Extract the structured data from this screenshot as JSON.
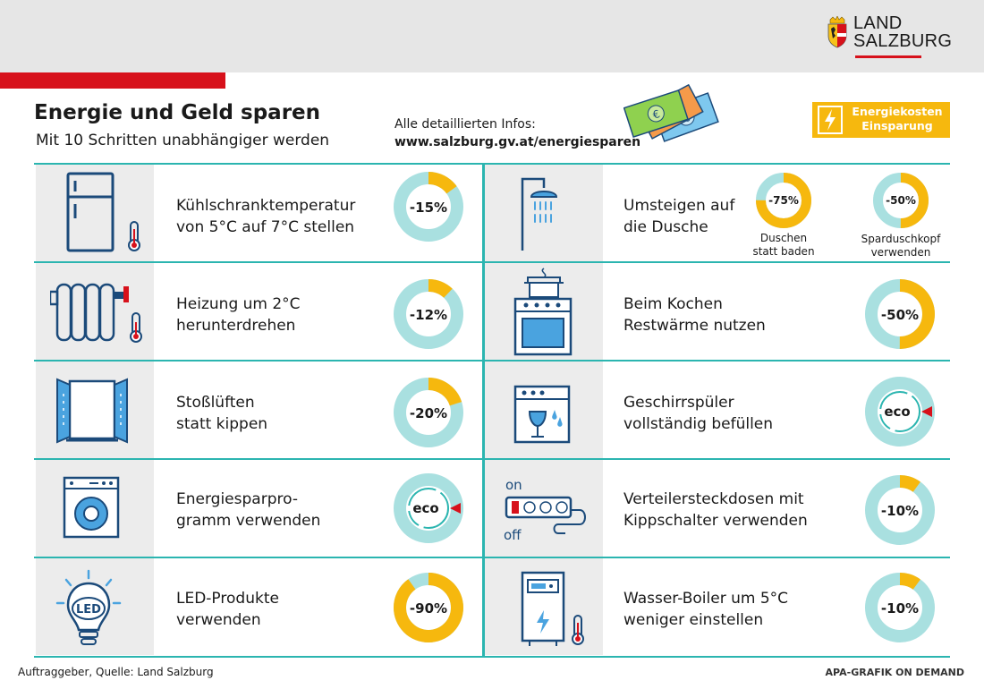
{
  "header": {
    "logo_line1": "LAND",
    "logo_line2": "SALZBURG",
    "title": "Energie und Geld sparen",
    "subtitle": "Mit 10 Schritten unabhängiger werden",
    "info_label": "Alle detaillierten Infos:",
    "info_url": "www.salzburg.gv.at/energiesparen",
    "legend_line1": "Energiekosten",
    "legend_line2": "Einsparung"
  },
  "colors": {
    "accent": "#f6b80e",
    "ring_bg": "#a9e0e0",
    "teal": "#2bb5b0",
    "icon": "#1b4a7a",
    "red": "#d7111b"
  },
  "tips": [
    {
      "icon": "fridge-thermometer-icon",
      "line1": "Kühlschranktemperatur",
      "line2": "von 5°C auf 7°C stellen",
      "saving": "-15%",
      "fraction": 0.15
    },
    {
      "icon": "radiator-thermometer-icon",
      "line1": "Heizung um 2°C",
      "line2": "herunterdrehen",
      "saving": "-12%",
      "fraction": 0.12
    },
    {
      "icon": "open-window-icon",
      "line1": "Stoßlüften",
      "line2": "statt kippen",
      "saving": "-20%",
      "fraction": 0.2
    },
    {
      "icon": "washing-machine-icon",
      "line1": "Energiesparpro-",
      "line2": "gramm verwenden",
      "saving": "eco"
    },
    {
      "icon": "led-bulb-icon",
      "line1": "LED-Produkte",
      "line2": "verwenden",
      "saving": "-90%",
      "fraction": 0.9
    },
    {
      "icon": "shower-icon",
      "line1": "Umsteigen auf",
      "line2": "die Dusche",
      "sub": [
        {
          "saving": "-75%",
          "fraction": 0.75,
          "cap1": "Duschen",
          "cap2": "statt baden"
        },
        {
          "saving": "-50%",
          "fraction": 0.5,
          "cap1": "Sparduschkopf",
          "cap2": "verwenden"
        }
      ]
    },
    {
      "icon": "stove-pot-icon",
      "line1": "Beim Kochen",
      "line2": "Restwärme nutzen",
      "saving": "-50%",
      "fraction": 0.5
    },
    {
      "icon": "dishwasher-icon",
      "line1": "Geschirrspüler",
      "line2": "vollständig befüllen",
      "saving": "eco"
    },
    {
      "icon": "power-strip-icon",
      "line1": "Verteilersteckdosen mit",
      "line2": "Kippschalter verwenden",
      "saving": "-10%",
      "fraction": 0.1,
      "on_label": "on",
      "off_label": "off"
    },
    {
      "icon": "water-boiler-icon",
      "line1": "Wasser-Boiler um 5°C",
      "line2": "weniger einstellen",
      "saving": "-10%",
      "fraction": 0.1
    }
  ],
  "footer": {
    "source": "Auftraggeber, Quelle: Land Salzburg",
    "credit": "APA-GRAFIK ON DEMAND"
  }
}
